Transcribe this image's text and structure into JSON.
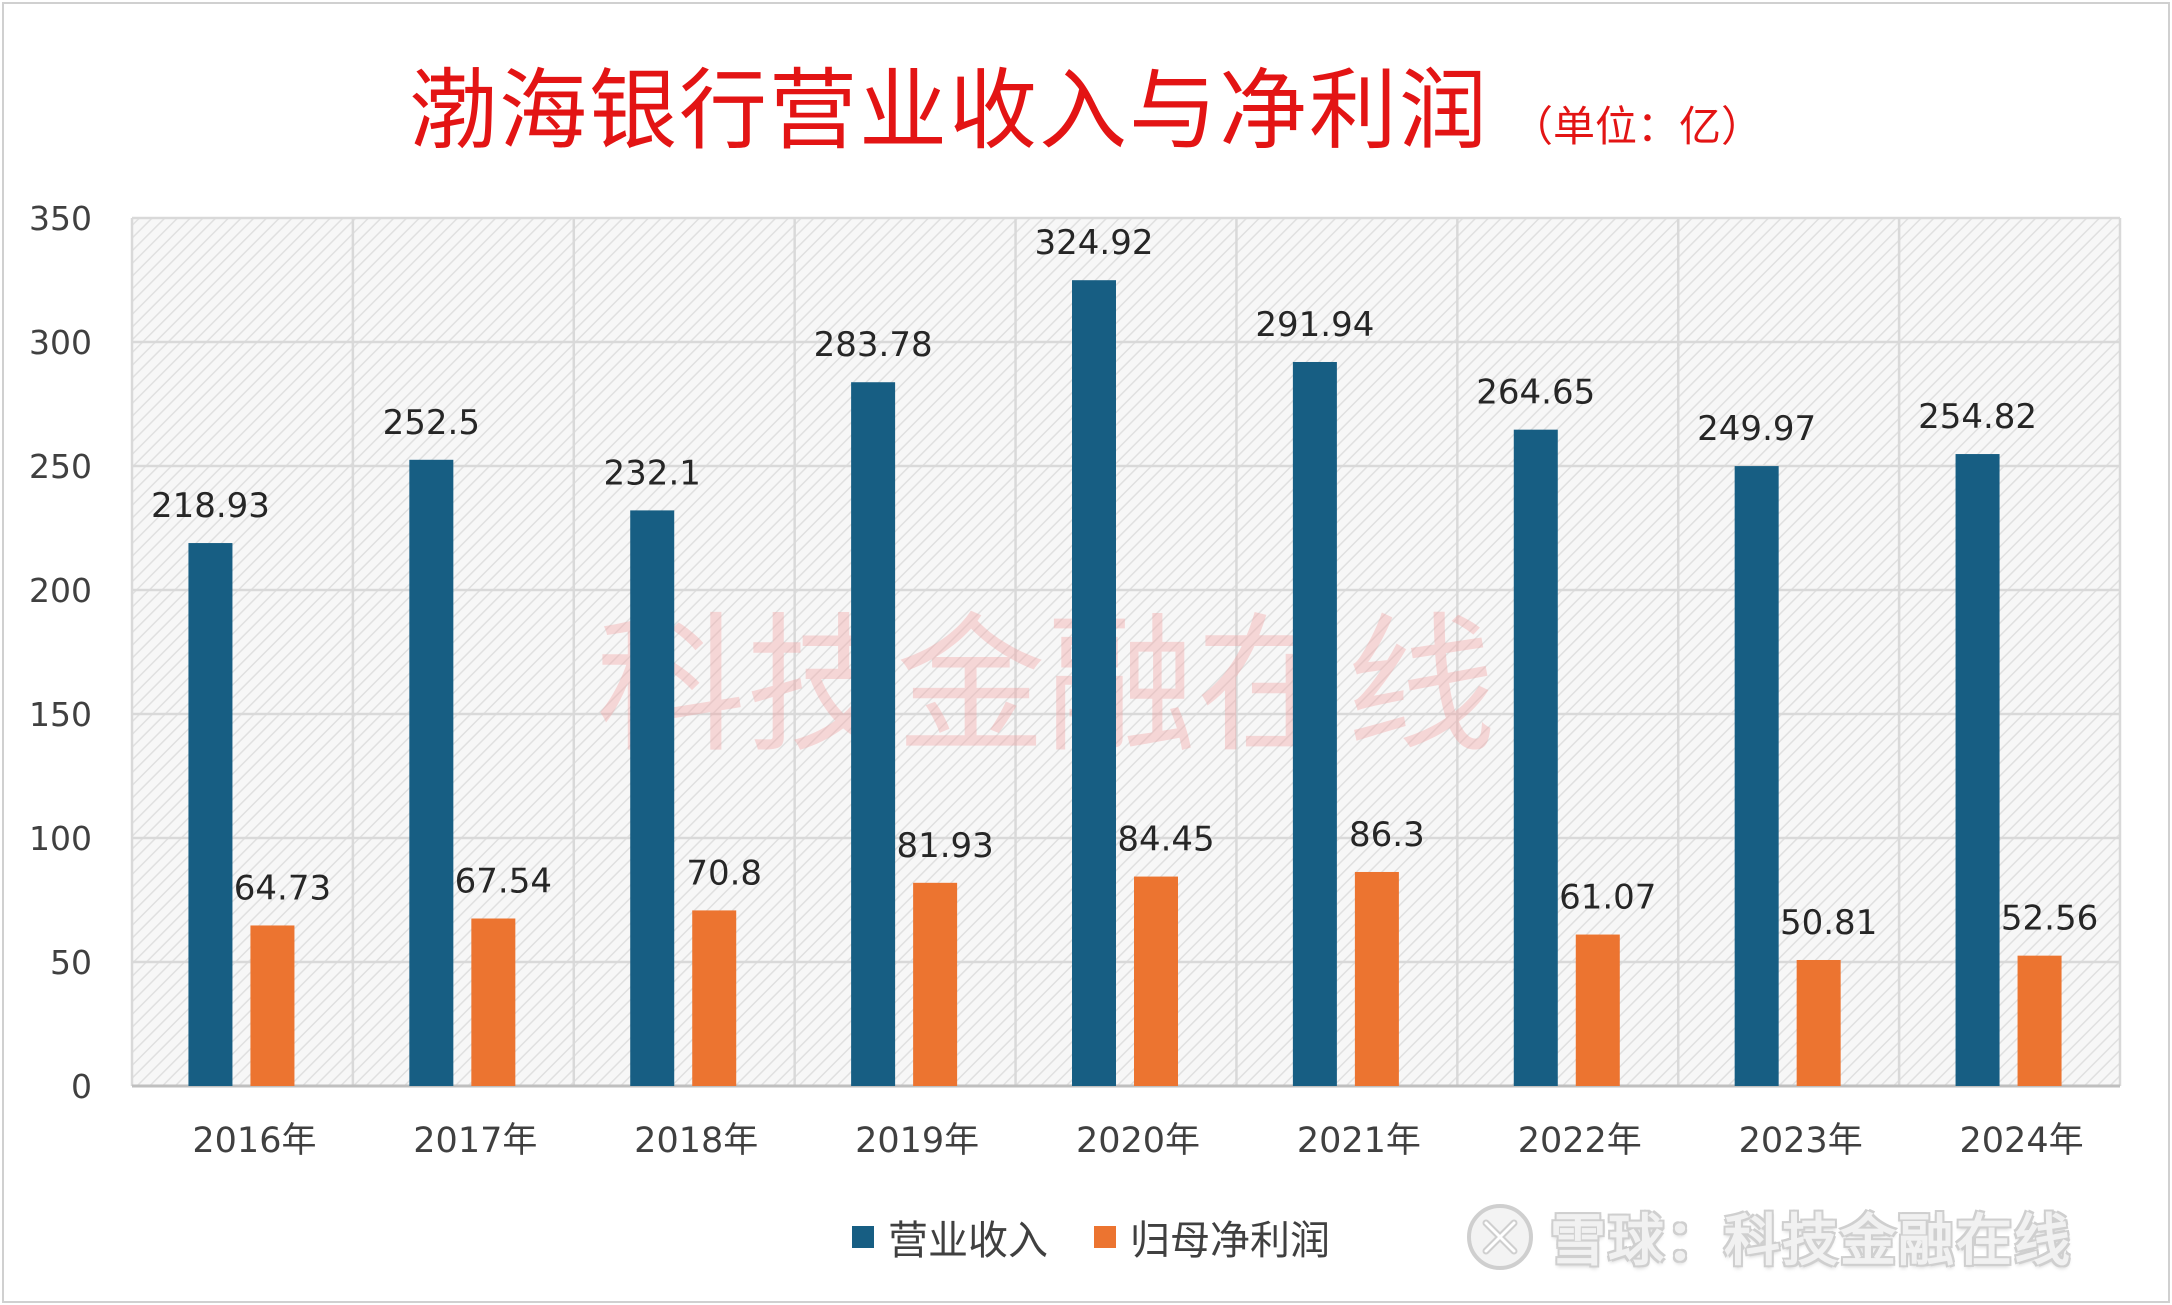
{
  "colors": {
    "revenue": "#175e83",
    "profit": "#ec7430",
    "title": "#e31414",
    "grid": "#d9d9d9"
  },
  "title": {
    "main": "渤海银行营业收入与净利润",
    "unit": "（单位：亿）"
  },
  "watermark": "科技金融在线",
  "brand": {
    "icon": "snowball-logo-icon",
    "text": "雪球：科技金融在线"
  },
  "chart_data": {
    "type": "bar",
    "title": "渤海银行营业收入与净利润",
    "subtitle": "（单位：亿）",
    "categories": [
      "2016年",
      "2017年",
      "2018年",
      "2019年",
      "2020年",
      "2021年",
      "2022年",
      "2023年",
      "2024年"
    ],
    "series": [
      {
        "name": "营业收入",
        "color": "#175e83",
        "values": [
          218.93,
          252.5,
          232.1,
          283.78,
          324.92,
          291.94,
          264.65,
          249.97,
          254.82
        ],
        "labels": [
          "218.93",
          "252.5",
          "232.1",
          "283.78",
          "324.92",
          "291.94",
          "264.65",
          "249.97",
          "254.82"
        ]
      },
      {
        "name": "归母净利润",
        "color": "#ec7430",
        "values": [
          64.73,
          67.54,
          70.8,
          81.93,
          84.45,
          86.3,
          61.07,
          50.81,
          52.56
        ],
        "labels": [
          "64.73",
          "67.54",
          "70.8",
          "81.93",
          "84.45",
          "86.3",
          "61.07",
          "50.81",
          "52.56"
        ]
      }
    ],
    "ylim": [
      0,
      350
    ],
    "yticks": [
      0,
      50,
      100,
      150,
      200,
      250,
      300,
      350
    ],
    "ytick_labels": [
      "0",
      "50",
      "100",
      "150",
      "200",
      "250",
      "300",
      "350"
    ],
    "xlabel": "",
    "ylabel": "",
    "grid": true,
    "legend_position": "bottom"
  }
}
